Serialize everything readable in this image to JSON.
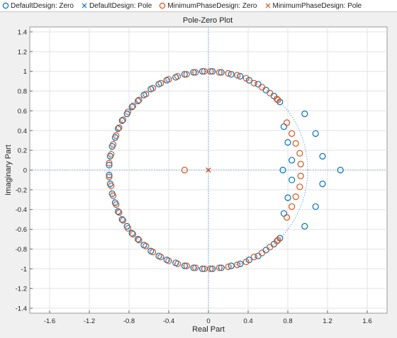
{
  "legend": [
    {
      "label": "DefaultDesign: Zero",
      "marker": "circle",
      "color": "#0072bd"
    },
    {
      "label": "DefaultDesign: Pole",
      "marker": "x",
      "color": "#0072bd"
    },
    {
      "label": "MinimumPhaseDesign: Zero",
      "marker": "circle",
      "color": "#d95319"
    },
    {
      "label": "MinimumPhaseDesign: Pole",
      "marker": "x",
      "color": "#d95319"
    }
  ],
  "chart_data": {
    "type": "scatter",
    "title": "Pole-Zero Plot",
    "xlabel": "Real Part",
    "ylabel": "Imaginary Part",
    "xlim": [
      -1.8,
      1.8
    ],
    "ylim": [
      -1.45,
      1.45
    ],
    "xticks": [
      -1.6,
      -1.2,
      -0.8,
      -0.4,
      0,
      0.4,
      0.8,
      1.2,
      1.6
    ],
    "yticks": [
      1.4,
      1.2,
      1,
      0.8,
      0.6,
      0.4,
      0.2,
      0,
      -0.2,
      -0.4,
      -0.6,
      -0.8,
      -1,
      -1.2,
      -1.4
    ],
    "xticklabels": [
      "-1.6",
      "-1.2",
      "-0.8",
      "-0.4",
      "0",
      "0.4",
      "0.8",
      "1.2",
      "1.6"
    ],
    "yticklabels": [
      "1.4",
      "1.2",
      "1",
      "0.8",
      "0.6",
      "0.4",
      "0.2",
      "0",
      "-0.2",
      "-0.4",
      "-0.6",
      "-0.8",
      "-1",
      "-1.2",
      "-1.4"
    ],
    "grid": true,
    "unit_circle": true,
    "colors": {
      "default": "#0072bd",
      "minphase": "#d95319",
      "axis_line": "#4a90d9"
    },
    "series": [
      {
        "name": "DefaultDesign: Zero",
        "marker": "circle",
        "color": "#0072bd",
        "points": [
          [
            0.04,
            1.0
          ],
          [
            0.13,
            0.99
          ],
          [
            0.23,
            0.97
          ],
          [
            0.32,
            0.95
          ],
          [
            0.41,
            0.91
          ],
          [
            0.5,
            0.87
          ],
          [
            0.58,
            0.81
          ],
          [
            0.66,
            0.75
          ],
          [
            0.72,
            0.69
          ],
          [
            0.04,
            -1.0
          ],
          [
            0.13,
            -0.99
          ],
          [
            0.23,
            -0.97
          ],
          [
            0.32,
            -0.95
          ],
          [
            0.41,
            -0.91
          ],
          [
            0.5,
            -0.87
          ],
          [
            0.58,
            -0.81
          ],
          [
            0.66,
            -0.75
          ],
          [
            0.72,
            -0.69
          ],
          [
            -0.06,
            1.0
          ],
          [
            -0.15,
            0.99
          ],
          [
            -0.24,
            0.97
          ],
          [
            -0.33,
            0.94
          ],
          [
            -0.42,
            0.91
          ],
          [
            -0.5,
            0.87
          ],
          [
            -0.58,
            0.82
          ],
          [
            -0.65,
            0.76
          ],
          [
            -0.71,
            0.7
          ],
          [
            -0.77,
            0.64
          ],
          [
            -0.82,
            0.57
          ],
          [
            -0.87,
            0.5
          ],
          [
            -0.91,
            0.42
          ],
          [
            -0.94,
            0.33
          ],
          [
            -0.97,
            0.24
          ],
          [
            -0.99,
            0.14
          ],
          [
            -1.0,
            0.05
          ],
          [
            -0.06,
            -1.0
          ],
          [
            -0.15,
            -0.99
          ],
          [
            -0.24,
            -0.97
          ],
          [
            -0.33,
            -0.94
          ],
          [
            -0.42,
            -0.91
          ],
          [
            -0.5,
            -0.87
          ],
          [
            -0.58,
            -0.82
          ],
          [
            -0.65,
            -0.76
          ],
          [
            -0.71,
            -0.7
          ],
          [
            -0.77,
            -0.64
          ],
          [
            -0.82,
            -0.57
          ],
          [
            -0.87,
            -0.5
          ],
          [
            -0.91,
            -0.42
          ],
          [
            -0.94,
            -0.33
          ],
          [
            -0.97,
            -0.24
          ],
          [
            -0.99,
            -0.14
          ],
          [
            -1.0,
            -0.05
          ],
          [
            0.76,
            0.44
          ],
          [
            0.8,
            0.28
          ],
          [
            0.84,
            0.1
          ],
          [
            0.76,
            -0.44
          ],
          [
            0.8,
            -0.28
          ],
          [
            0.84,
            -0.1
          ],
          [
            0.75,
            0.0
          ],
          [
            0.97,
            0.57
          ],
          [
            1.08,
            0.37
          ],
          [
            1.15,
            0.14
          ],
          [
            0.97,
            -0.57
          ],
          [
            1.08,
            -0.37
          ],
          [
            1.15,
            -0.14
          ],
          [
            1.33,
            0.0
          ]
        ]
      },
      {
        "name": "DefaultDesign: Pole",
        "marker": "x",
        "color": "#0072bd",
        "points": [
          [
            0.0,
            0.0
          ]
        ]
      },
      {
        "name": "MinimumPhaseDesign: Zero",
        "marker": "circle",
        "color": "#d95319",
        "points": [
          [
            0.02,
            1.0
          ],
          [
            0.11,
            0.99
          ],
          [
            0.2,
            0.98
          ],
          [
            0.29,
            0.96
          ],
          [
            0.38,
            0.93
          ],
          [
            0.46,
            0.88
          ],
          [
            0.54,
            0.84
          ],
          [
            0.62,
            0.78
          ],
          [
            0.69,
            0.72
          ],
          [
            0.7,
            0.71
          ],
          [
            0.02,
            -1.0
          ],
          [
            0.11,
            -0.99
          ],
          [
            0.2,
            -0.98
          ],
          [
            0.29,
            -0.96
          ],
          [
            0.38,
            -0.93
          ],
          [
            0.46,
            -0.88
          ],
          [
            0.54,
            -0.84
          ],
          [
            0.62,
            -0.78
          ],
          [
            0.69,
            -0.72
          ],
          [
            0.7,
            -0.71
          ],
          [
            -0.04,
            1.0
          ],
          [
            -0.13,
            0.99
          ],
          [
            -0.22,
            0.97
          ],
          [
            -0.31,
            0.95
          ],
          [
            -0.4,
            0.92
          ],
          [
            -0.48,
            0.88
          ],
          [
            -0.56,
            0.83
          ],
          [
            -0.63,
            0.77
          ],
          [
            -0.7,
            0.71
          ],
          [
            -0.76,
            0.65
          ],
          [
            -0.81,
            0.59
          ],
          [
            -0.86,
            0.51
          ],
          [
            -0.9,
            0.43
          ],
          [
            -0.93,
            0.35
          ],
          [
            -0.96,
            0.26
          ],
          [
            -0.98,
            0.16
          ],
          [
            -1.0,
            0.07
          ],
          [
            -0.04,
            -1.0
          ],
          [
            -0.13,
            -0.99
          ],
          [
            -0.22,
            -0.97
          ],
          [
            -0.31,
            -0.95
          ],
          [
            -0.4,
            -0.92
          ],
          [
            -0.48,
            -0.88
          ],
          [
            -0.56,
            -0.83
          ],
          [
            -0.63,
            -0.77
          ],
          [
            -0.7,
            -0.71
          ],
          [
            -0.76,
            -0.65
          ],
          [
            -0.81,
            -0.59
          ],
          [
            -0.86,
            -0.51
          ],
          [
            -0.9,
            -0.43
          ],
          [
            -0.93,
            -0.35
          ],
          [
            -0.96,
            -0.26
          ],
          [
            -0.98,
            -0.16
          ],
          [
            -1.0,
            -0.07
          ],
          [
            0.79,
            0.48
          ],
          [
            0.84,
            0.37
          ],
          [
            0.88,
            0.27
          ],
          [
            0.92,
            0.17
          ],
          [
            0.93,
            0.06
          ],
          [
            0.79,
            -0.48
          ],
          [
            0.84,
            -0.37
          ],
          [
            0.88,
            -0.27
          ],
          [
            0.92,
            -0.17
          ],
          [
            0.93,
            -0.06
          ],
          [
            -0.24,
            0.0
          ]
        ]
      },
      {
        "name": "MinimumPhaseDesign: Pole",
        "marker": "x",
        "color": "#d95319",
        "points": [
          [
            0.0,
            0.0
          ]
        ]
      }
    ]
  }
}
